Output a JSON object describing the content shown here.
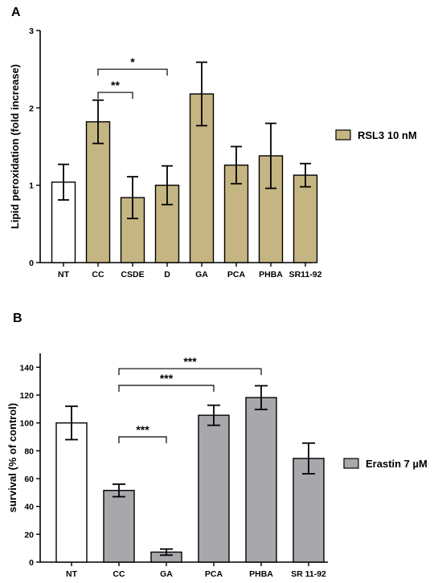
{
  "chart_data": [
    {
      "panel": "A",
      "type": "bar",
      "categories": [
        "NT",
        "CC",
        "CSDE",
        "D",
        "GA",
        "PCA",
        "PHBA",
        "SR11-92"
      ],
      "values": [
        1.04,
        1.82,
        0.84,
        1.0,
        2.18,
        1.26,
        1.38,
        1.13
      ],
      "errors": [
        0.23,
        0.28,
        0.27,
        0.25,
        0.41,
        0.24,
        0.42,
        0.15
      ],
      "bar_colors": [
        "#ffffff",
        "#c4b582",
        "#c4b582",
        "#c4b582",
        "#c4b582",
        "#c4b582",
        "#c4b582",
        "#c4b582"
      ],
      "ylabel": "Lipid peroxidation (fold increase)",
      "ylim": [
        0,
        3
      ],
      "yticks": [
        0,
        1,
        2,
        3
      ],
      "legend": {
        "label": "RSL3 10 nM",
        "color": "#c4b582"
      },
      "significance": [
        {
          "from": 1,
          "to": 3,
          "label": "*",
          "y": 2.5
        },
        {
          "from": 1,
          "to": 2,
          "label": "**",
          "y": 2.2
        }
      ]
    },
    {
      "panel": "B",
      "type": "bar",
      "categories": [
        "NT",
        "CC",
        "GA",
        "PCA",
        "PHBA",
        "SR 11-92"
      ],
      "values": [
        100,
        51.5,
        7.2,
        105.5,
        118.2,
        74.5
      ],
      "errors": [
        12,
        4.5,
        2.2,
        7.2,
        8.5,
        11
      ],
      "bar_colors": [
        "#ffffff",
        "#a8a8ac",
        "#a8a8ac",
        "#a8a8ac",
        "#a8a8ac",
        "#a8a8ac"
      ],
      "ylabel": "survival (% of control)",
      "ylim": [
        0,
        150
      ],
      "yticks": [
        0,
        20,
        40,
        60,
        80,
        100,
        120,
        140
      ],
      "legend": {
        "label": "Erastin 7 µM",
        "color": "#a8a8ac"
      },
      "significance": [
        {
          "from": 1,
          "to": 4,
          "label": "***",
          "y": 139
        },
        {
          "from": 1,
          "to": 3,
          "label": "***",
          "y": 127
        },
        {
          "from": 1,
          "to": 2,
          "label": "***",
          "y": 90
        }
      ]
    }
  ]
}
